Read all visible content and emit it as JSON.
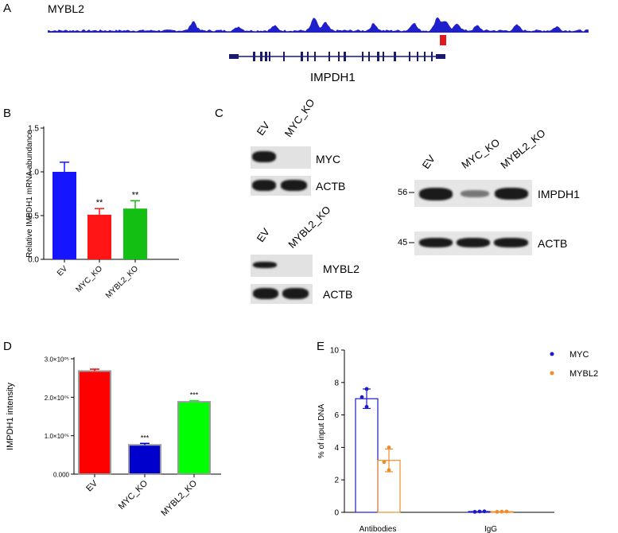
{
  "panels": {
    "a": "A",
    "b": "B",
    "c": "C",
    "d": "D",
    "e": "E"
  },
  "track": {
    "name": "MYBL2",
    "gene": "IMPDH1",
    "track_color": "#1f1fcc",
    "peak_marker_color": "#e01b1b",
    "gene_color": "#1a1a6e"
  },
  "blots": {
    "myc_ko": {
      "lanes": [
        "EV",
        "MYC_KO"
      ],
      "rows": [
        "MYC",
        "ACTB"
      ]
    },
    "mybl2_ko": {
      "lanes": [
        "EV",
        "MYBL2_KO"
      ],
      "rows": [
        "MYBL2",
        "ACTB"
      ]
    },
    "impdh1": {
      "lanes": [
        "EV",
        "MYC_KO",
        "MYBL2_KO"
      ],
      "rows": [
        "IMPDH1",
        "ACTB"
      ],
      "markers": [
        "56",
        "45"
      ]
    }
  },
  "chart_data": [
    {
      "id": "B",
      "type": "bar",
      "ylabel": "Relative IMPDH1 mRNA abundance",
      "categories": [
        "EV",
        "MYC_KO",
        "MYBL2_KO"
      ],
      "values": [
        1.0,
        0.51,
        0.58
      ],
      "errors": [
        0.11,
        0.07,
        0.09
      ],
      "significance": [
        "",
        "**",
        "**"
      ],
      "colors": [
        "#1515ff",
        "#ff1515",
        "#12bf12"
      ],
      "ylim": [
        0,
        1.5
      ],
      "yticks": [
        0.0,
        0.5,
        1.0,
        1.5
      ],
      "ytick_labels": [
        "0.0",
        "0.5",
        "1.0",
        "1.5"
      ]
    },
    {
      "id": "D",
      "type": "bar",
      "ylabel": "IMPDH1 intensity",
      "categories": [
        "EV",
        "MYC_KO",
        "MYBL2_KO"
      ],
      "values": [
        268000,
        76000,
        188000
      ],
      "errors": [
        5000,
        4000,
        3000
      ],
      "significance": [
        "",
        "***",
        "***"
      ],
      "colors": [
        "#ff0000",
        "#0000cc",
        "#00ff00"
      ],
      "ylim": [
        0,
        300000
      ],
      "yticks": [
        0,
        100000,
        200000,
        300000
      ],
      "ytick_labels": [
        "0.000",
        "1.0×10⁰⁵",
        "2.0×10⁰⁵",
        "3.0×10⁰⁵"
      ]
    },
    {
      "id": "E",
      "type": "bar",
      "ylabel": "% of input DNA",
      "categories": [
        "Antibodies",
        "IgG"
      ],
      "series": [
        {
          "name": "MYC",
          "color": "#1a1acc",
          "values": [
            7.0,
            0.05
          ],
          "errors": [
            0.6,
            0.02
          ],
          "points": [
            [
              6.5,
              7.1,
              7.6
            ],
            [
              0.03,
              0.05,
              0.06
            ]
          ]
        },
        {
          "name": "MYBL2",
          "color": "#f08a2c",
          "values": [
            3.2,
            0.04
          ],
          "errors": [
            0.7,
            0.02
          ],
          "points": [
            [
              2.6,
              3.1,
              4.0
            ],
            [
              0.03,
              0.04,
              0.05
            ]
          ]
        }
      ],
      "ylim": [
        0,
        10
      ],
      "yticks": [
        0,
        2,
        4,
        6,
        8,
        10
      ],
      "ytick_labels": [
        "0",
        "2",
        "4",
        "6",
        "8",
        "10"
      ],
      "legend": "top-right"
    }
  ]
}
